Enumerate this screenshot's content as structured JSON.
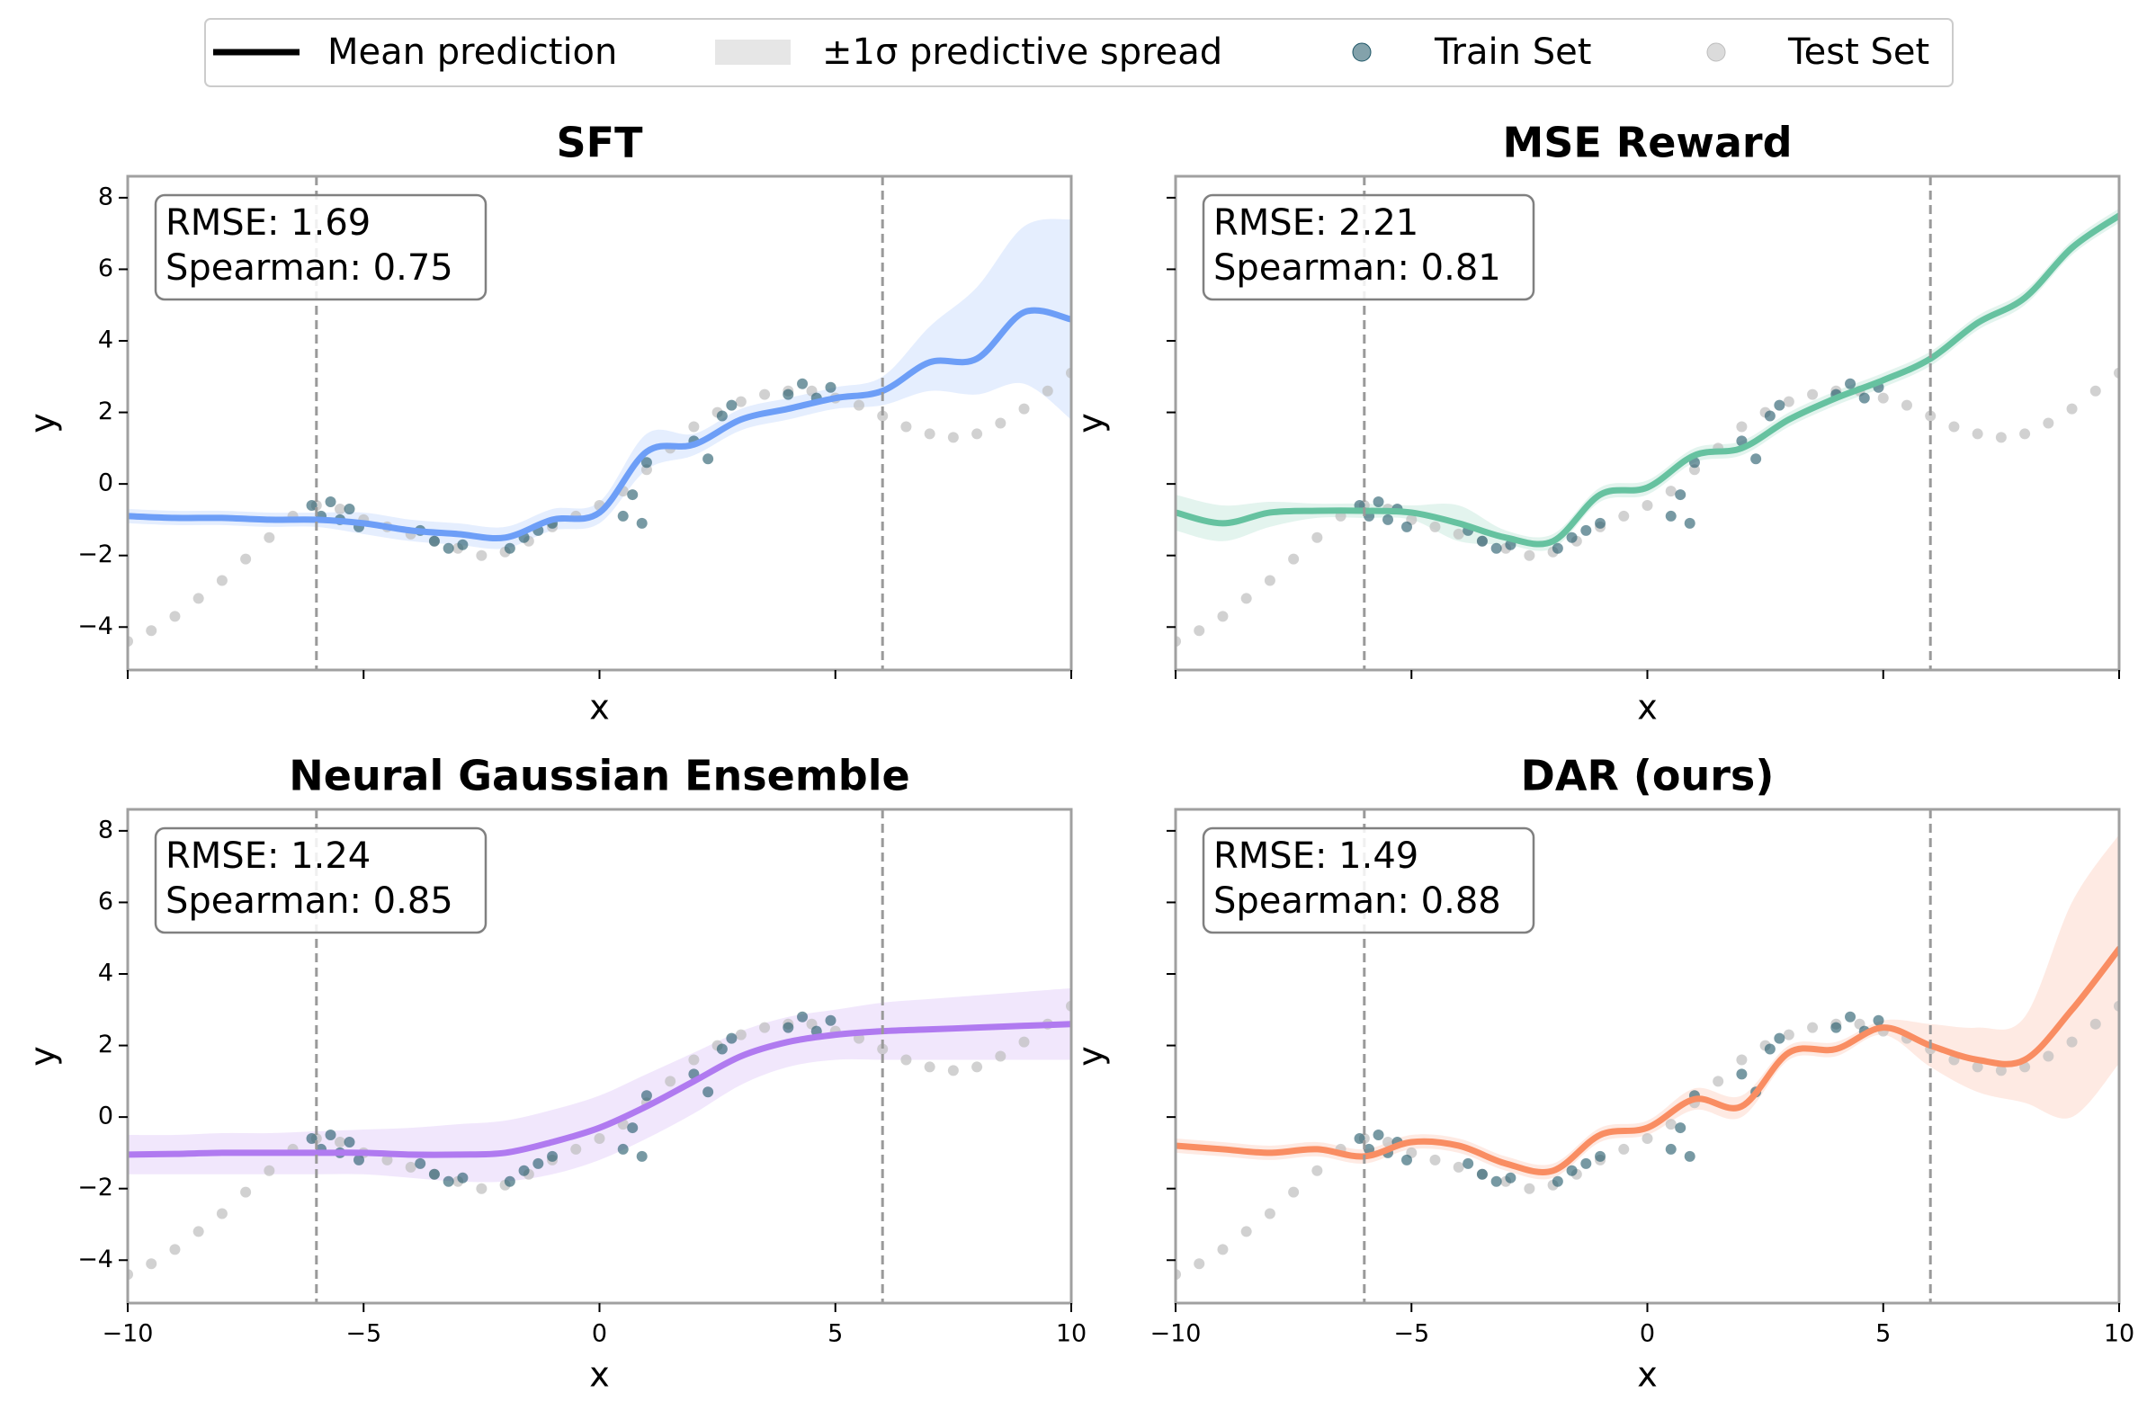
{
  "legend": {
    "position": "upper center",
    "items": [
      {
        "label": "Mean prediction",
        "color": "#000000",
        "marker": "line"
      },
      {
        "label": "±1σ predictive spread",
        "color": "#e6e6e6",
        "marker": "patch"
      },
      {
        "label": "Train Set",
        "color": "#1d5566",
        "marker": "dot"
      },
      {
        "label": "Test Set",
        "color": "#bdbdbd",
        "marker": "dot"
      }
    ]
  },
  "chart_data": [
    {
      "type": "line",
      "title": "SFT",
      "annotation": [
        "RMSE: 1.69",
        "Spearman: 0.75"
      ],
      "xlabel": "x",
      "ylabel": "y",
      "xlim": [
        -10,
        10
      ],
      "ylim": [
        -5.2,
        8.6
      ],
      "xticks": [
        {
          "value": -10,
          "label": "−10"
        },
        {
          "value": -5,
          "label": "−5"
        },
        0,
        5,
        10
      ],
      "yticks": [
        {
          "value": -4,
          "label": "−4"
        },
        {
          "value": -2,
          "label": "−2"
        },
        0,
        2,
        4,
        6,
        8
      ],
      "show_xtick_labels": false,
      "show_ytick_labels": true,
      "vlines": [
        -6,
        6
      ],
      "color": "#6d9ef7",
      "x": [
        -10,
        -9,
        -8,
        -7,
        -6,
        -5,
        -4,
        -3,
        -2,
        -1,
        0,
        1,
        2,
        3,
        4,
        5,
        6,
        7,
        8,
        9,
        10
      ],
      "values": [
        -0.9,
        -0.95,
        -0.95,
        -1.0,
        -1.0,
        -1.1,
        -1.3,
        -1.4,
        -1.5,
        -1.0,
        -0.8,
        0.9,
        1.1,
        1.8,
        2.1,
        2.4,
        2.6,
        3.4,
        3.5,
        4.8,
        4.6
      ],
      "lower": [
        -1.1,
        -1.15,
        -1.15,
        -1.2,
        -1.2,
        -1.4,
        -1.6,
        -1.7,
        -1.8,
        -1.3,
        -1.1,
        0.4,
        0.8,
        1.5,
        1.8,
        2.1,
        2.2,
        2.6,
        2.5,
        2.8,
        1.8
      ],
      "upper": [
        -0.7,
        -0.75,
        -0.75,
        -0.8,
        -0.8,
        -0.8,
        -1.0,
        -1.1,
        -1.2,
        -0.7,
        -0.5,
        1.4,
        1.4,
        2.1,
        2.4,
        2.7,
        3.0,
        4.4,
        5.5,
        7.2,
        7.4
      ],
      "train": {
        "x": [
          -6.1,
          -5.9,
          -5.7,
          -5.5,
          -5.3,
          -5.1,
          -3.8,
          -3.5,
          -3.2,
          -2.9,
          -1.9,
          -1.6,
          -1.3,
          -1.0,
          0.5,
          0.7,
          0.9,
          1.0,
          2.0,
          2.3,
          2.6,
          2.8,
          4.0,
          4.3,
          4.6,
          4.9
        ],
        "values": [
          -0.6,
          -0.9,
          -0.5,
          -1.0,
          -0.7,
          -1.2,
          -1.3,
          -1.6,
          -1.8,
          -1.7,
          -1.8,
          -1.5,
          -1.3,
          -1.1,
          -0.9,
          -0.3,
          -1.1,
          0.6,
          1.2,
          0.7,
          1.9,
          2.2,
          2.5,
          2.8,
          2.4,
          2.7
        ]
      },
      "test": {
        "x": [
          -10,
          -9.5,
          -9,
          -8.5,
          -8,
          -7.5,
          -7,
          -6.5,
          -6,
          -5.5,
          -5,
          -4.5,
          -4,
          -3.5,
          -3,
          -2.5,
          -2,
          -1.5,
          -1,
          -0.5,
          0,
          0.5,
          1,
          1.5,
          2,
          2.5,
          3,
          3.5,
          4,
          4.5,
          5,
          5.5,
          6,
          6.5,
          7,
          7.5,
          8,
          8.5,
          9,
          9.5,
          10
        ],
        "values": [
          -4.4,
          -4.1,
          -3.7,
          -3.2,
          -2.7,
          -2.1,
          -1.5,
          -0.9,
          -0.6,
          -0.7,
          -1.0,
          -1.2,
          -1.4,
          -1.6,
          -1.8,
          -2.0,
          -1.9,
          -1.6,
          -1.2,
          -0.9,
          -0.6,
          -0.2,
          0.4,
          1.0,
          1.6,
          2.0,
          2.3,
          2.5,
          2.6,
          2.6,
          2.4,
          2.2,
          1.9,
          1.6,
          1.4,
          1.3,
          1.4,
          1.7,
          2.1,
          2.6,
          3.1
        ]
      }
    },
    {
      "type": "line",
      "title": "MSE Reward",
      "annotation": [
        "RMSE: 2.21",
        "Spearman: 0.81"
      ],
      "xlabel": "x",
      "ylabel": "y",
      "xlim": [
        -10,
        10
      ],
      "ylim": [
        -5.2,
        8.6
      ],
      "xticks": [
        {
          "value": -10,
          "label": "−10"
        },
        {
          "value": -5,
          "label": "−5"
        },
        0,
        5,
        10
      ],
      "yticks": [
        {
          "value": -4,
          "label": "−4"
        },
        {
          "value": -2,
          "label": "−2"
        },
        0,
        2,
        4,
        6,
        8
      ],
      "show_xtick_labels": false,
      "show_ytick_labels": false,
      "vlines": [
        -6,
        6
      ],
      "color": "#66c2a0",
      "x": [
        -10,
        -9,
        -8,
        -7,
        -6,
        -5,
        -4,
        -3,
        -2,
        -1,
        0,
        1,
        2,
        3,
        4,
        5,
        6,
        7,
        8,
        9,
        10
      ],
      "values": [
        -0.8,
        -1.1,
        -0.8,
        -0.75,
        -0.75,
        -0.8,
        -1.1,
        -1.5,
        -1.6,
        -0.3,
        -0.1,
        0.8,
        1.0,
        1.8,
        2.4,
        2.9,
        3.5,
        4.5,
        5.2,
        6.6,
        7.5
      ],
      "lower": [
        -1.3,
        -1.6,
        -1.2,
        -0.95,
        -0.95,
        -1.0,
        -1.6,
        -1.7,
        -1.8,
        -0.5,
        -0.3,
        0.6,
        0.8,
        1.6,
        2.2,
        2.7,
        3.3,
        4.3,
        5.0,
        6.4,
        7.3
      ],
      "upper": [
        -0.3,
        -0.6,
        -0.5,
        -0.55,
        -0.55,
        -0.6,
        -0.6,
        -1.3,
        -1.4,
        -0.1,
        0.1,
        1.0,
        1.2,
        2.0,
        2.6,
        3.1,
        3.7,
        4.7,
        5.4,
        6.8,
        7.7
      ],
      "train": {
        "x": [
          -6.1,
          -5.9,
          -5.7,
          -5.5,
          -5.3,
          -5.1,
          -3.8,
          -3.5,
          -3.2,
          -2.9,
          -1.9,
          -1.6,
          -1.3,
          -1.0,
          0.5,
          0.7,
          0.9,
          1.0,
          2.0,
          2.3,
          2.6,
          2.8,
          4.0,
          4.3,
          4.6,
          4.9
        ],
        "values": [
          -0.6,
          -0.9,
          -0.5,
          -1.0,
          -0.7,
          -1.2,
          -1.3,
          -1.6,
          -1.8,
          -1.7,
          -1.8,
          -1.5,
          -1.3,
          -1.1,
          -0.9,
          -0.3,
          -1.1,
          0.6,
          1.2,
          0.7,
          1.9,
          2.2,
          2.5,
          2.8,
          2.4,
          2.7
        ]
      },
      "test": {
        "x": [
          -10,
          -9.5,
          -9,
          -8.5,
          -8,
          -7.5,
          -7,
          -6.5,
          -6,
          -5.5,
          -5,
          -4.5,
          -4,
          -3.5,
          -3,
          -2.5,
          -2,
          -1.5,
          -1,
          -0.5,
          0,
          0.5,
          1,
          1.5,
          2,
          2.5,
          3,
          3.5,
          4,
          4.5,
          5,
          5.5,
          6,
          6.5,
          7,
          7.5,
          8,
          8.5,
          9,
          9.5,
          10
        ],
        "values": [
          -4.4,
          -4.1,
          -3.7,
          -3.2,
          -2.7,
          -2.1,
          -1.5,
          -0.9,
          -0.6,
          -0.7,
          -1.0,
          -1.2,
          -1.4,
          -1.6,
          -1.8,
          -2.0,
          -1.9,
          -1.6,
          -1.2,
          -0.9,
          -0.6,
          -0.2,
          0.4,
          1.0,
          1.6,
          2.0,
          2.3,
          2.5,
          2.6,
          2.6,
          2.4,
          2.2,
          1.9,
          1.6,
          1.4,
          1.3,
          1.4,
          1.7,
          2.1,
          2.6,
          3.1
        ]
      }
    },
    {
      "type": "line",
      "title": "Neural Gaussian Ensemble",
      "annotation": [
        "RMSE: 1.24",
        "Spearman: 0.85"
      ],
      "xlabel": "x",
      "ylabel": "y",
      "xlim": [
        -10,
        10
      ],
      "ylim": [
        -5.2,
        8.6
      ],
      "xticks": [
        {
          "value": -10,
          "label": "−10"
        },
        {
          "value": -5,
          "label": "−5"
        },
        0,
        5,
        10
      ],
      "yticks": [
        {
          "value": -4,
          "label": "−4"
        },
        {
          "value": -2,
          "label": "−2"
        },
        0,
        2,
        4,
        6,
        8
      ],
      "show_xtick_labels": true,
      "show_ytick_labels": true,
      "vlines": [
        -6,
        6
      ],
      "color": "#b07af0",
      "x": [
        -10,
        -9,
        -8,
        -7,
        -6,
        -5,
        -4,
        -3,
        -2,
        -1,
        0,
        1,
        2,
        3,
        4,
        5,
        6,
        7,
        8,
        9,
        10
      ],
      "values": [
        -1.05,
        -1.03,
        -1.0,
        -1.0,
        -1.0,
        -1.0,
        -1.05,
        -1.05,
        -1.0,
        -0.7,
        -0.3,
        0.3,
        1.0,
        1.7,
        2.1,
        2.3,
        2.4,
        2.45,
        2.5,
        2.55,
        2.6
      ],
      "lower": [
        -1.6,
        -1.6,
        -1.6,
        -1.6,
        -1.6,
        -1.6,
        -1.7,
        -1.8,
        -1.8,
        -1.6,
        -1.2,
        -0.6,
        0.1,
        0.9,
        1.4,
        1.6,
        1.6,
        1.6,
        1.6,
        1.6,
        1.6
      ],
      "upper": [
        -0.5,
        -0.5,
        -0.45,
        -0.45,
        -0.4,
        -0.35,
        -0.3,
        -0.2,
        -0.1,
        0.2,
        0.6,
        1.2,
        1.8,
        2.4,
        2.8,
        3.0,
        3.2,
        3.3,
        3.4,
        3.5,
        3.6
      ],
      "train": {
        "x": [
          -6.1,
          -5.9,
          -5.7,
          -5.5,
          -5.3,
          -5.1,
          -3.8,
          -3.5,
          -3.2,
          -2.9,
          -1.9,
          -1.6,
          -1.3,
          -1.0,
          0.5,
          0.7,
          0.9,
          1.0,
          2.0,
          2.3,
          2.6,
          2.8,
          4.0,
          4.3,
          4.6,
          4.9
        ],
        "values": [
          -0.6,
          -0.9,
          -0.5,
          -1.0,
          -0.7,
          -1.2,
          -1.3,
          -1.6,
          -1.8,
          -1.7,
          -1.8,
          -1.5,
          -1.3,
          -1.1,
          -0.9,
          -0.3,
          -1.1,
          0.6,
          1.2,
          0.7,
          1.9,
          2.2,
          2.5,
          2.8,
          2.4,
          2.7
        ]
      },
      "test": {
        "x": [
          -10,
          -9.5,
          -9,
          -8.5,
          -8,
          -7.5,
          -7,
          -6.5,
          -6,
          -5.5,
          -5,
          -4.5,
          -4,
          -3.5,
          -3,
          -2.5,
          -2,
          -1.5,
          -1,
          -0.5,
          0,
          0.5,
          1,
          1.5,
          2,
          2.5,
          3,
          3.5,
          4,
          4.5,
          5,
          5.5,
          6,
          6.5,
          7,
          7.5,
          8,
          8.5,
          9,
          9.5,
          10
        ],
        "values": [
          -4.4,
          -4.1,
          -3.7,
          -3.2,
          -2.7,
          -2.1,
          -1.5,
          -0.9,
          -0.6,
          -0.7,
          -1.0,
          -1.2,
          -1.4,
          -1.6,
          -1.8,
          -2.0,
          -1.9,
          -1.6,
          -1.2,
          -0.9,
          -0.6,
          -0.2,
          0.4,
          1.0,
          1.6,
          2.0,
          2.3,
          2.5,
          2.6,
          2.6,
          2.4,
          2.2,
          1.9,
          1.6,
          1.4,
          1.3,
          1.4,
          1.7,
          2.1,
          2.6,
          3.1
        ]
      }
    },
    {
      "type": "line",
      "title": "DAR (ours)",
      "annotation": [
        "RMSE: 1.49",
        "Spearman: 0.88"
      ],
      "xlabel": "x",
      "ylabel": "y",
      "xlim": [
        -10,
        10
      ],
      "ylim": [
        -5.2,
        8.6
      ],
      "xticks": [
        {
          "value": -10,
          "label": "−10"
        },
        {
          "value": -5,
          "label": "−5"
        },
        0,
        5,
        10
      ],
      "yticks": [
        {
          "value": -4,
          "label": "−4"
        },
        {
          "value": -2,
          "label": "−2"
        },
        0,
        2,
        4,
        6,
        8
      ],
      "show_xtick_labels": true,
      "show_ytick_labels": false,
      "vlines": [
        -6,
        6
      ],
      "color": "#f98d62",
      "x": [
        -10,
        -9,
        -8,
        -7,
        -6,
        -5,
        -4,
        -3,
        -2,
        -1,
        0,
        1,
        2,
        3,
        4,
        5,
        6,
        7,
        8,
        9,
        10
      ],
      "values": [
        -0.8,
        -0.9,
        -1.0,
        -0.9,
        -1.1,
        -0.7,
        -0.8,
        -1.3,
        -1.5,
        -0.5,
        -0.3,
        0.5,
        0.3,
        1.8,
        1.9,
        2.5,
        2.0,
        1.6,
        1.6,
        3.0,
        4.7
      ],
      "lower": [
        -1.0,
        -1.1,
        -1.2,
        -1.1,
        -1.3,
        -0.9,
        -1.0,
        -1.5,
        -1.7,
        -0.7,
        -0.5,
        0.2,
        0.0,
        1.6,
        1.7,
        2.3,
        1.4,
        0.7,
        0.4,
        0.0,
        1.5
      ],
      "upper": [
        -0.6,
        -0.7,
        -0.8,
        -0.7,
        -0.9,
        -0.5,
        -0.6,
        -1.1,
        -1.3,
        -0.3,
        -0.1,
        0.8,
        0.6,
        2.0,
        2.1,
        2.7,
        2.6,
        2.5,
        2.8,
        6.0,
        7.9
      ],
      "train": {
        "x": [
          -6.1,
          -5.9,
          -5.7,
          -5.5,
          -5.3,
          -5.1,
          -3.8,
          -3.5,
          -3.2,
          -2.9,
          -1.9,
          -1.6,
          -1.3,
          -1.0,
          0.5,
          0.7,
          0.9,
          1.0,
          2.0,
          2.3,
          2.6,
          2.8,
          4.0,
          4.3,
          4.6,
          4.9
        ],
        "values": [
          -0.6,
          -0.9,
          -0.5,
          -1.0,
          -0.7,
          -1.2,
          -1.3,
          -1.6,
          -1.8,
          -1.7,
          -1.8,
          -1.5,
          -1.3,
          -1.1,
          -0.9,
          -0.3,
          -1.1,
          0.6,
          1.2,
          0.7,
          1.9,
          2.2,
          2.5,
          2.8,
          2.4,
          2.7
        ]
      },
      "test": {
        "x": [
          -10,
          -9.5,
          -9,
          -8.5,
          -8,
          -7.5,
          -7,
          -6.5,
          -6,
          -5.5,
          -5,
          -4.5,
          -4,
          -3.5,
          -3,
          -2.5,
          -2,
          -1.5,
          -1,
          -0.5,
          0,
          0.5,
          1,
          1.5,
          2,
          2.5,
          3,
          3.5,
          4,
          4.5,
          5,
          5.5,
          6,
          6.5,
          7,
          7.5,
          8,
          8.5,
          9,
          9.5,
          10
        ],
        "values": [
          -4.4,
          -4.1,
          -3.7,
          -3.2,
          -2.7,
          -2.1,
          -1.5,
          -0.9,
          -0.6,
          -0.7,
          -1.0,
          -1.2,
          -1.4,
          -1.6,
          -1.8,
          -2.0,
          -1.9,
          -1.6,
          -1.2,
          -0.9,
          -0.6,
          -0.2,
          0.4,
          1.0,
          1.6,
          2.0,
          2.3,
          2.5,
          2.6,
          2.6,
          2.4,
          2.2,
          1.9,
          1.6,
          1.4,
          1.3,
          1.4,
          1.7,
          2.1,
          2.6,
          3.1
        ]
      }
    }
  ]
}
